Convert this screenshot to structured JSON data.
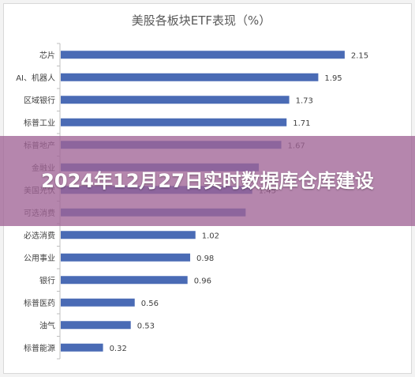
{
  "chart_data": {
    "type": "bar",
    "orientation": "horizontal",
    "title": "美股各板块ETF表现（%）",
    "categories": [
      "芯片",
      "AI、机器人",
      "区域银行",
      "标普工业",
      "标普地产",
      "金融业",
      "美国光伏",
      "可选消费",
      "必选消费",
      "公用事业",
      "银行",
      "标普医药",
      "油气",
      "标普能源"
    ],
    "values": [
      2.15,
      1.95,
      1.73,
      1.71,
      1.67,
      1.5,
      1.45,
      1.4,
      1.02,
      0.98,
      0.96,
      0.56,
      0.53,
      0.32
    ],
    "data_labels": [
      "2.15",
      "1.95",
      "1.73",
      "1.71",
      "1.67",
      "",
      "1.45",
      "",
      "1.02",
      "0.98",
      "0.96",
      "0.56",
      "0.53",
      "0.32"
    ],
    "xlim": [
      0,
      2.3
    ],
    "grid": false,
    "legend": "none",
    "colors": {
      "bar": "#4a6bb5",
      "axis": "#bfbfbf",
      "title": "#595959",
      "label": "#404040"
    }
  },
  "overlay": {
    "title": "2024年12月27日实时数据库仓库建设"
  }
}
